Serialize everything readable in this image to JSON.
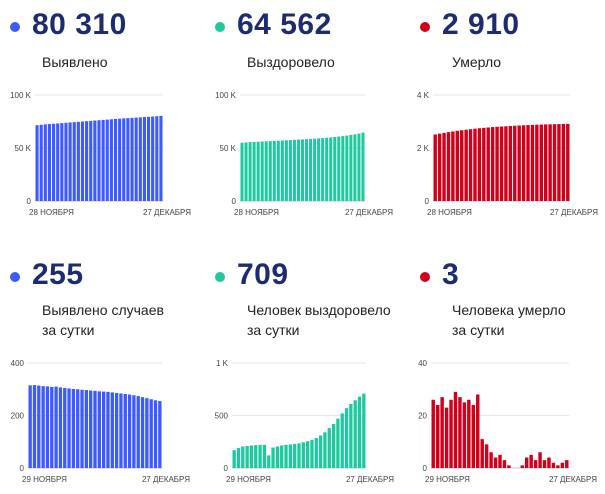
{
  "colors": {
    "blue": "#3d5afe",
    "green": "#1ec9a0",
    "red": "#d0021b"
  },
  "panels": [
    {
      "key": "detected",
      "value": "80 310",
      "label": [
        "Выявлено"
      ],
      "color": "#3d5afe",
      "icon": "bullet-dot-icon"
    },
    {
      "key": "recovered",
      "value": "64 562",
      "label": [
        "Выздоровело"
      ],
      "color": "#1ec9a0",
      "icon": "bullet-dot-icon"
    },
    {
      "key": "died",
      "value": "2 910",
      "label": [
        "Умерло"
      ],
      "color": "#d0021b",
      "icon": "bullet-dot-icon"
    },
    {
      "key": "detected-daily",
      "value": "255",
      "label": [
        "Выявлено случаев",
        "за сутки"
      ],
      "color": "#3d5afe",
      "icon": "bullet-dot-icon"
    },
    {
      "key": "recovered-daily",
      "value": "709",
      "label": [
        "Человек выздоровело",
        "за сутки"
      ],
      "color": "#1ec9a0",
      "icon": "bullet-dot-icon"
    },
    {
      "key": "died-daily",
      "value": "3",
      "label": [
        "Человека умерло",
        "за сутки"
      ],
      "color": "#d0021b",
      "icon": "bullet-dot-icon"
    }
  ],
  "chart_data": [
    {
      "type": "bar",
      "title": "",
      "color": "#3d5afe",
      "ylim": [
        0,
        100000
      ],
      "yticks": [
        {
          "v": 0,
          "t": "0"
        },
        {
          "v": 50000,
          "t": "50 K"
        },
        {
          "v": 100000,
          "t": "100 K"
        }
      ],
      "xticks": [
        "28 НОЯБРЯ",
        "27 ДЕКАБРЯ"
      ],
      "values": [
        71500,
        71900,
        72300,
        72600,
        72900,
        73200,
        73500,
        73800,
        74100,
        74400,
        74700,
        75000,
        75300,
        75600,
        75900,
        76200,
        76500,
        76800,
        77100,
        77400,
        77700,
        77950,
        78200,
        78450,
        78700,
        78950,
        79200,
        79450,
        79700,
        79950,
        80310
      ]
    },
    {
      "type": "bar",
      "title": "",
      "color": "#1ec9a0",
      "ylim": [
        0,
        100000
      ],
      "yticks": [
        {
          "v": 0,
          "t": "0"
        },
        {
          "v": 50000,
          "t": "50 K"
        },
        {
          "v": 100000,
          "t": "100 K"
        }
      ],
      "xticks": [
        "28 НОЯБРЯ",
        "27 ДЕКАБРЯ"
      ],
      "values": [
        55000,
        55300,
        55500,
        55700,
        55900,
        56100,
        56300,
        56500,
        56700,
        56900,
        57100,
        57300,
        57500,
        57700,
        57900,
        58100,
        58300,
        58500,
        58800,
        59100,
        59400,
        59700,
        60000,
        60400,
        60800,
        61200,
        61700,
        62300,
        62900,
        63600,
        64562
      ]
    },
    {
      "type": "bar",
      "title": "",
      "color": "#d0021b",
      "ylim": [
        0,
        4000
      ],
      "yticks": [
        {
          "v": 0,
          "t": "0"
        },
        {
          "v": 2000,
          "t": "2 K"
        },
        {
          "v": 4000,
          "t": "4 K"
        }
      ],
      "xticks": [
        "28 НОЯБРЯ",
        "27 ДЕКАБРЯ"
      ],
      "values": [
        2510,
        2540,
        2570,
        2600,
        2625,
        2650,
        2670,
        2690,
        2710,
        2730,
        2745,
        2760,
        2775,
        2790,
        2800,
        2810,
        2820,
        2830,
        2840,
        2850,
        2858,
        2865,
        2872,
        2879,
        2885,
        2890,
        2895,
        2899,
        2903,
        2907,
        2910
      ]
    },
    {
      "type": "bar",
      "title": "",
      "color": "#3d5afe",
      "ylim": [
        0,
        400
      ],
      "yticks": [
        {
          "v": 0,
          "t": "0"
        },
        {
          "v": 200,
          "t": "200"
        },
        {
          "v": 400,
          "t": "400"
        }
      ],
      "xticks": [
        "29 НОЯБРЯ",
        "27 ДЕКАБРЯ"
      ],
      "values": [
        315,
        316,
        314,
        312,
        311,
        309,
        310,
        307,
        305,
        303,
        301,
        300,
        298,
        297,
        295,
        294,
        292,
        291,
        290,
        288,
        286,
        284,
        282,
        280,
        277,
        274,
        270,
        266,
        262,
        258,
        255
      ]
    },
    {
      "type": "bar",
      "title": "",
      "color": "#1ec9a0",
      "ylim": [
        0,
        1000
      ],
      "yticks": [
        {
          "v": 0,
          "t": "0"
        },
        {
          "v": 500,
          "t": "500"
        },
        {
          "v": 1000,
          "t": "1 K"
        }
      ],
      "xticks": [
        "29 НОЯБРЯ",
        "27 ДЕКАБРЯ"
      ],
      "values": [
        170,
        190,
        205,
        210,
        215,
        218,
        220,
        220,
        120,
        195,
        205,
        215,
        220,
        225,
        230,
        235,
        245,
        255,
        268,
        285,
        310,
        340,
        380,
        420,
        470,
        520,
        570,
        610,
        645,
        680,
        709
      ]
    },
    {
      "type": "bar",
      "title": "",
      "color": "#d0021b",
      "ylim": [
        0,
        40
      ],
      "yticks": [
        {
          "v": 0,
          "t": "0"
        },
        {
          "v": 20,
          "t": "20"
        },
        {
          "v": 40,
          "t": "40"
        }
      ],
      "xticks": [
        "29 НОЯБРЯ",
        "27 ДЕКАБРЯ"
      ],
      "values": [
        26,
        24,
        27,
        23,
        26,
        29,
        27,
        25,
        26,
        24,
        28,
        11,
        9,
        6,
        4,
        5,
        3,
        1,
        0,
        0,
        1,
        4,
        5,
        3,
        6,
        3,
        4,
        2,
        1,
        2,
        3
      ]
    }
  ]
}
